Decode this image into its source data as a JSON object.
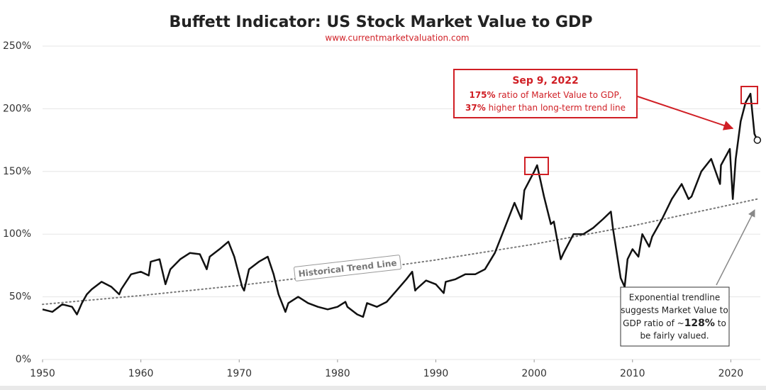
{
  "chart_data": {
    "type": "line",
    "title": "Buffett Indicator: US Stock Market Value to GDP",
    "subtitle": "www.currentmarketvaluation.com",
    "xlim": [
      1950,
      2023
    ],
    "xticks": [
      1950,
      1960,
      1970,
      1980,
      1990,
      2000,
      2010,
      2020
    ],
    "ylim": [
      0,
      250
    ],
    "yticks": [
      {
        "value": 0,
        "label": "0%"
      },
      {
        "value": 50,
        "label": "50%"
      },
      {
        "value": 100,
        "label": "100%"
      },
      {
        "value": 150,
        "label": "150%"
      },
      {
        "value": 200,
        "label": "200%"
      },
      {
        "value": 250,
        "label": "250%"
      }
    ],
    "grid": true,
    "series": [
      {
        "name": "Market Value to GDP",
        "color": "#111111",
        "x": [
          1950,
          1951,
          1952,
          1953,
          1953.5,
          1954,
          1954.5,
          1955,
          1956,
          1957,
          1957.8,
          1958,
          1959,
          1960,
          1960.8,
          1961,
          1961.9,
          1962.5,
          1963,
          1964,
          1965,
          1966,
          1966.7,
          1967,
          1968,
          1968.9,
          1969.5,
          1970.3,
          1970.5,
          1971,
          1972,
          1972.9,
          1973.5,
          1974,
          1974.7,
          1975,
          1976,
          1977,
          1978,
          1979,
          1980,
          1980.8,
          1981,
          1982,
          1982.6,
          1983,
          1984,
          1985,
          1986,
          1987,
          1987.6,
          1987.9,
          1988,
          1989,
          1990,
          1990.8,
          1991,
          1992,
          1993,
          1994,
          1995,
          1996,
          1997,
          1998,
          1998.7,
          1999,
          2000,
          2000.3,
          2001,
          2001.7,
          2002,
          2002.7,
          2003,
          2004,
          2005,
          2006,
          2007,
          2007.8,
          2008,
          2008.8,
          2009.2,
          2009.5,
          2010,
          2010.6,
          2011,
          2011.7,
          2012,
          2013,
          2014,
          2015,
          2015.7,
          2016,
          2017,
          2018,
          2018.9,
          2019,
          2019.9,
          2020.2,
          2020.5,
          2021,
          2021.5,
          2022,
          2022.4,
          2022.7
        ],
        "values": [
          40,
          38,
          44,
          42,
          36,
          45,
          52,
          56,
          62,
          58,
          52,
          56,
          68,
          70,
          67,
          78,
          80,
          60,
          72,
          80,
          85,
          84,
          72,
          82,
          88,
          94,
          82,
          58,
          55,
          72,
          78,
          82,
          68,
          52,
          38,
          45,
          50,
          45,
          42,
          40,
          42,
          46,
          42,
          36,
          34,
          45,
          42,
          46,
          55,
          64,
          70,
          55,
          56,
          63,
          60,
          53,
          62,
          64,
          68,
          68,
          72,
          85,
          105,
          125,
          112,
          135,
          150,
          155,
          130,
          108,
          110,
          80,
          85,
          100,
          100,
          105,
          112,
          118,
          105,
          65,
          58,
          80,
          88,
          82,
          100,
          90,
          98,
          112,
          128,
          140,
          128,
          130,
          150,
          160,
          140,
          155,
          168,
          128,
          160,
          190,
          205,
          212,
          180,
          175
        ]
      },
      {
        "name": "Historical Trend Line",
        "color": "#777777",
        "x": [
          1950,
          1960,
          1970,
          1980,
          1990,
          2000,
          2010,
          2020,
          2022.7
        ],
        "values": [
          44,
          51,
          59.1,
          68.5,
          79.4,
          92,
          106.6,
          123.5,
          128
        ]
      }
    ],
    "callout": {
      "date": "Sep 9, 2022",
      "line1": [
        "175%",
        " ratio of Market Value to GDP,"
      ],
      "line2": [
        "37%",
        " higher than long-term trend line"
      ]
    },
    "note": {
      "line1": "Exponential trendline",
      "line2": "suggests Market Value to",
      "line3": [
        "GDP ratio of ~",
        "128%",
        " to"
      ],
      "line4": "be fairly valued."
    }
  }
}
